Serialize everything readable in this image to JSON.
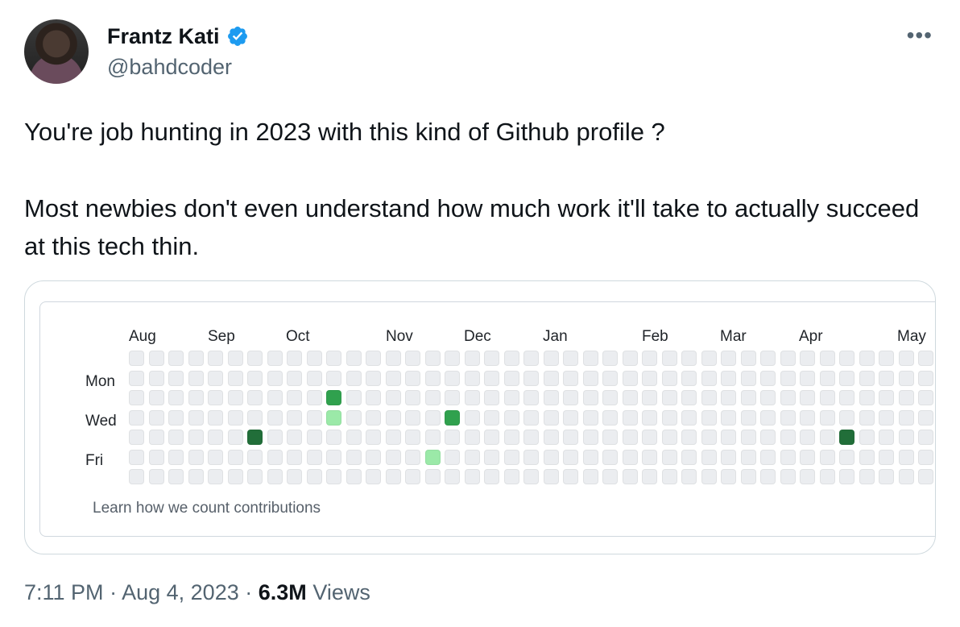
{
  "author": {
    "display_name": "Frantz Kati",
    "handle": "@bahdcoder",
    "verified": true,
    "verified_icon_color": "#1d9bf0"
  },
  "tweet": {
    "line1": "You're job hunting in 2023 with this kind of Github profile ?",
    "line2": "Most newbies don't even understand how much work it'll take to actually succeed at this tech thin."
  },
  "graph": {
    "months": [
      "Aug",
      "Sep",
      "Oct",
      "Nov",
      "Dec",
      "Jan",
      "Feb",
      "Mar",
      "Apr",
      "May"
    ],
    "days": [
      "Mon",
      "Wed",
      "Fri"
    ],
    "weeks": 41,
    "colors": [
      "#ebedf0",
      "#9be9a8",
      "#40c463",
      "#30a14e",
      "#216e39"
    ],
    "contributions": [
      {
        "week": 6,
        "day": 4,
        "level": 4
      },
      {
        "week": 10,
        "day": 2,
        "level": 3
      },
      {
        "week": 10,
        "day": 3,
        "level": 1
      },
      {
        "week": 15,
        "day": 5,
        "level": 1
      },
      {
        "week": 16,
        "day": 3,
        "level": 3
      },
      {
        "week": 36,
        "day": 4,
        "level": 4
      }
    ],
    "learn_link": "Learn how we count contributions"
  },
  "meta": {
    "time": "7:11 PM",
    "date": "Aug 4, 2023",
    "separator": "·",
    "views_count": "6.3M",
    "views_label": "Views"
  },
  "icons": {
    "more": "more-options-icon",
    "verified": "verified-badge-icon"
  }
}
